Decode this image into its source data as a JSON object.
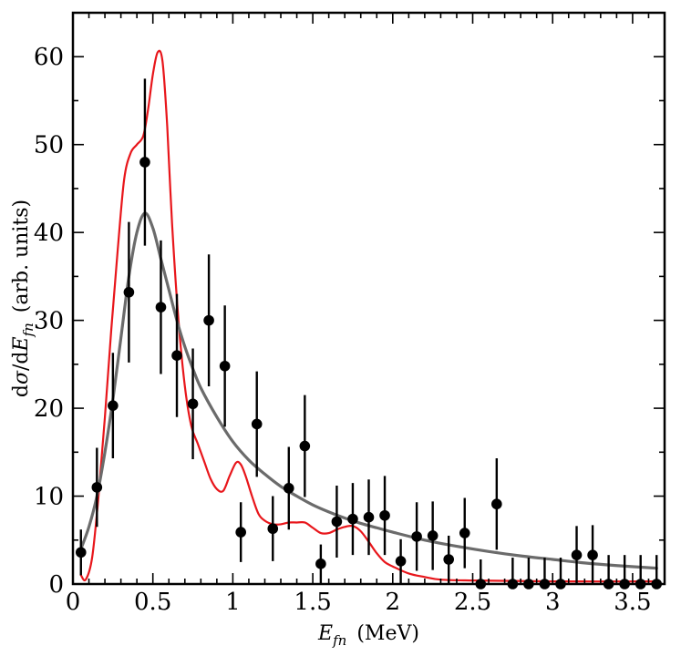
{
  "chart_data": {
    "type": "scatter",
    "xlabel": {
      "var": "E",
      "sub": "fn",
      "unit": "(MeV)"
    },
    "ylabel": {
      "prefix": "dσ/d",
      "var": "E",
      "sub": "fn",
      "unit": "(arb. units)"
    },
    "xlim": [
      0,
      3.7
    ],
    "ylim": [
      0,
      65
    ],
    "xticks": [
      0,
      0.5,
      1,
      1.5,
      2,
      2.5,
      3,
      3.5
    ],
    "xtick_labels": [
      "0",
      "0.5",
      "1",
      "1.5",
      "2",
      "2.5",
      "3",
      "3.5"
    ],
    "yticks": [
      0,
      10,
      20,
      30,
      40,
      50,
      60
    ],
    "ytick_labels": [
      "0",
      "10",
      "20",
      "30",
      "40",
      "50",
      "60"
    ],
    "series": [
      {
        "name": "data",
        "kind": "points-with-errorbars",
        "color": "#000000",
        "points": [
          {
            "x": 0.05,
            "y": 3.6,
            "err": 2.6
          },
          {
            "x": 0.15,
            "y": 11.0,
            "err": 4.5
          },
          {
            "x": 0.25,
            "y": 20.3,
            "err": 6.0
          },
          {
            "x": 0.35,
            "y": 33.2,
            "err": 8.0
          },
          {
            "x": 0.45,
            "y": 48.0,
            "err": 9.5
          },
          {
            "x": 0.55,
            "y": 31.5,
            "err": 7.6
          },
          {
            "x": 0.65,
            "y": 26.0,
            "err": 7.0
          },
          {
            "x": 0.75,
            "y": 20.5,
            "err": 6.3
          },
          {
            "x": 0.85,
            "y": 30.0,
            "err": 7.5
          },
          {
            "x": 0.95,
            "y": 24.8,
            "err": 6.9
          },
          {
            "x": 1.05,
            "y": 5.9,
            "err": 3.4
          },
          {
            "x": 1.15,
            "y": 18.2,
            "err": 6.0
          },
          {
            "x": 1.25,
            "y": 6.3,
            "err": 3.7
          },
          {
            "x": 1.35,
            "y": 10.9,
            "err": 4.7
          },
          {
            "x": 1.45,
            "y": 15.7,
            "err": 5.8
          },
          {
            "x": 1.55,
            "y": 2.3,
            "err": 2.2
          },
          {
            "x": 1.65,
            "y": 7.1,
            "err": 4.1
          },
          {
            "x": 1.75,
            "y": 7.4,
            "err": 4.1
          },
          {
            "x": 1.85,
            "y": 7.6,
            "err": 4.3
          },
          {
            "x": 1.95,
            "y": 7.8,
            "err": 4.5
          },
          {
            "x": 2.05,
            "y": 2.6,
            "err": 2.5
          },
          {
            "x": 2.15,
            "y": 5.4,
            "err": 3.9
          },
          {
            "x": 2.25,
            "y": 5.5,
            "err": 3.9
          },
          {
            "x": 2.35,
            "y": 2.8,
            "err": 2.7
          },
          {
            "x": 2.45,
            "y": 5.8,
            "err": 4.0
          },
          {
            "x": 2.55,
            "y": 0.0,
            "err": 2.8
          },
          {
            "x": 2.65,
            "y": 9.1,
            "err": 5.2
          },
          {
            "x": 2.75,
            "y": 0.0,
            "err": 3.0
          },
          {
            "x": 2.85,
            "y": 0.0,
            "err": 3.0
          },
          {
            "x": 2.95,
            "y": 0.0,
            "err": 3.0
          },
          {
            "x": 3.05,
            "y": 0.0,
            "err": 3.0
          },
          {
            "x": 3.15,
            "y": 3.3,
            "err": 3.3
          },
          {
            "x": 3.25,
            "y": 3.3,
            "err": 3.4
          },
          {
            "x": 3.35,
            "y": 0.0,
            "err": 3.3
          },
          {
            "x": 3.45,
            "y": 0.0,
            "err": 3.3
          },
          {
            "x": 3.55,
            "y": 0.0,
            "err": 3.3
          },
          {
            "x": 3.65,
            "y": 0.0,
            "err": 3.3
          }
        ]
      },
      {
        "name": "red curve",
        "kind": "line",
        "color": "#e8161b",
        "x": [
          0.05,
          0.08,
          0.12,
          0.16,
          0.2,
          0.24,
          0.28,
          0.32,
          0.36,
          0.4,
          0.44,
          0.47,
          0.5,
          0.53,
          0.56,
          0.59,
          0.62,
          0.66,
          0.7,
          0.74,
          0.78,
          0.82,
          0.86,
          0.9,
          0.94,
          0.98,
          1.02,
          1.05,
          1.08,
          1.12,
          1.16,
          1.2,
          1.25,
          1.3,
          1.35,
          1.4,
          1.45,
          1.5,
          1.55,
          1.6,
          1.65,
          1.7,
          1.75,
          1.8,
          1.85,
          1.9,
          1.95,
          2.0,
          2.1,
          2.2,
          2.3,
          2.5,
          3.0,
          3.65
        ],
        "y": [
          1.0,
          0.5,
          3.0,
          10.0,
          19.0,
          29.0,
          38.0,
          46.0,
          49.0,
          50.0,
          51.0,
          54.0,
          58.0,
          60.5,
          59.5,
          52.0,
          41.0,
          30.0,
          22.5,
          18.0,
          16.0,
          14.0,
          12.0,
          10.8,
          10.6,
          12.3,
          13.8,
          13.6,
          12.3,
          10.0,
          8.0,
          7.2,
          6.8,
          6.8,
          7.0,
          7.0,
          7.0,
          6.4,
          5.8,
          5.8,
          6.2,
          6.5,
          6.6,
          6.0,
          4.8,
          3.5,
          2.5,
          2.0,
          1.2,
          0.8,
          0.5,
          0.4,
          0.3,
          0.3
        ]
      },
      {
        "name": "gray curve",
        "kind": "line",
        "color": "#6b6b6b",
        "x": [
          0.05,
          0.1,
          0.15,
          0.2,
          0.25,
          0.3,
          0.35,
          0.4,
          0.45,
          0.5,
          0.55,
          0.6,
          0.65,
          0.7,
          0.75,
          0.8,
          0.9,
          1.0,
          1.1,
          1.2,
          1.3,
          1.4,
          1.5,
          1.6,
          1.7,
          1.8,
          1.9,
          2.0,
          2.2,
          2.4,
          2.6,
          2.8,
          3.0,
          3.2,
          3.4,
          3.65
        ],
        "y": [
          4.0,
          6.5,
          10.0,
          15.0,
          21.0,
          28.0,
          35.0,
          40.0,
          42.2,
          40.5,
          37.0,
          33.5,
          30.0,
          27.0,
          24.5,
          22.3,
          19.0,
          16.2,
          14.1,
          12.5,
          11.1,
          10.0,
          9.0,
          8.2,
          7.5,
          6.9,
          6.4,
          5.9,
          5.0,
          4.3,
          3.7,
          3.2,
          2.8,
          2.4,
          2.1,
          1.8
        ]
      }
    ]
  }
}
